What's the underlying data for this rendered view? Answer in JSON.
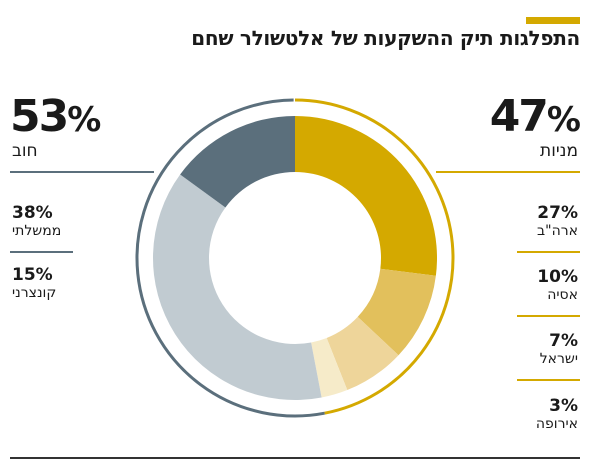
{
  "title": "התפלגות תיק ההשקעות של אלטשולר שחם",
  "colors": {
    "gold": "#d4a900",
    "slate": "#5b6f7c"
  },
  "groups": [
    {
      "name": "מניות",
      "pct": "47",
      "side": "right"
    },
    {
      "name": "חוב",
      "pct": "53",
      "side": "left"
    }
  ],
  "right_items": [
    {
      "pct": "27%",
      "label": "ארה\"ב"
    },
    {
      "pct": "10%",
      "label": "אסיה"
    },
    {
      "pct": "7%",
      "label": "ישראל"
    },
    {
      "pct": "3%",
      "label": "אירופה"
    }
  ],
  "left_items": [
    {
      "pct": "38%",
      "label": "ממשלתי"
    },
    {
      "pct": "15%",
      "label": "קונצרני"
    }
  ],
  "chart_data": {
    "type": "pie",
    "labels": [
      "ארה\"ב",
      "אסיה",
      "ישראל",
      "אירופה",
      "ממשלתי",
      "קונצרני"
    ],
    "values": [
      27,
      10,
      7,
      3,
      38,
      15
    ],
    "colors": [
      "#d4a900",
      "#e2c05c",
      "#eed59a",
      "#f6ebc9",
      "#c1cbd1",
      "#5b6f7c"
    ],
    "groups": [
      {
        "name": "מניות",
        "value": 47
      },
      {
        "name": "חוב",
        "value": 53
      }
    ]
  }
}
